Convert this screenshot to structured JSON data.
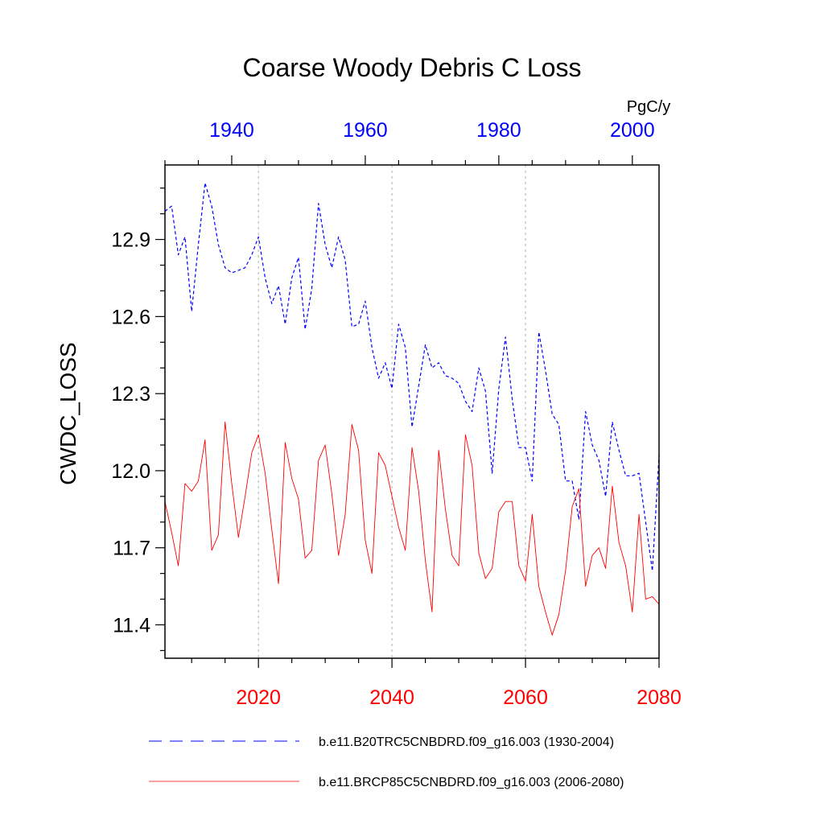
{
  "chart_data": {
    "type": "line",
    "title": "Coarse Woody Debris C Loss",
    "ylabel": "CWDC_LOSS",
    "units": "PgC/y",
    "ylim": [
      11.27,
      13.19
    ],
    "yticks": [
      11.4,
      11.7,
      12.0,
      12.3,
      12.6,
      12.9
    ],
    "ytick_labels": [
      "11.4",
      "11.7",
      "12.0",
      "12.3",
      "12.6",
      "12.9"
    ],
    "top_axis": {
      "range": [
        1930,
        2004
      ],
      "ticks": [
        1940,
        1960,
        1980,
        2000
      ],
      "tick_labels": [
        "1940",
        "1960",
        "1980",
        "2000"
      ],
      "color": "#0000ff"
    },
    "bottom_axis": {
      "range": [
        2006,
        2080
      ],
      "ticks": [
        2020,
        2040,
        2060,
        2080
      ],
      "tick_labels": [
        "2020",
        "2040",
        "2060",
        "2080"
      ],
      "color": "#ff0000"
    },
    "series": [
      {
        "name": "b.e11.B20TRC5CNBDRD.f09_g16.003 (1930-2004)",
        "axis": "top",
        "color": "#0000ff",
        "dash": "dashed",
        "x_start": 1930,
        "values": [
          13.01,
          13.03,
          12.84,
          12.91,
          12.62,
          12.88,
          13.12,
          13.03,
          12.88,
          12.79,
          12.77,
          12.78,
          12.79,
          12.84,
          12.91,
          12.75,
          12.65,
          12.72,
          12.57,
          12.75,
          12.83,
          12.55,
          12.71,
          13.04,
          12.88,
          12.79,
          12.91,
          12.82,
          12.56,
          12.57,
          12.66,
          12.48,
          12.36,
          12.42,
          12.32,
          12.57,
          12.48,
          12.17,
          12.33,
          12.49,
          12.4,
          12.42,
          12.37,
          12.36,
          12.34,
          12.27,
          12.23,
          12.4,
          12.31,
          11.99,
          12.32,
          12.52,
          12.28,
          12.09,
          12.09,
          11.96,
          12.54,
          12.39,
          12.22,
          12.18,
          11.96,
          11.96,
          11.81,
          12.23,
          12.1,
          12.04,
          11.9,
          12.19,
          12.08,
          11.98,
          11.98,
          11.99,
          11.8,
          11.61,
          12.06
        ]
      },
      {
        "name": "b.e11.BRCP85C5CNBDRD.f09_g16.003 (2006-2080)",
        "axis": "bottom",
        "color": "#ff0000",
        "dash": "solid",
        "x_start": 2006,
        "values": [
          11.88,
          11.76,
          11.63,
          11.95,
          11.92,
          11.96,
          12.12,
          11.69,
          11.75,
          12.19,
          11.95,
          11.74,
          11.9,
          12.07,
          12.14,
          11.99,
          11.77,
          11.56,
          12.11,
          11.97,
          11.89,
          11.66,
          11.69,
          12.04,
          12.1,
          11.91,
          11.67,
          11.83,
          12.18,
          12.08,
          11.73,
          11.6,
          12.07,
          12.02,
          11.9,
          11.78,
          11.69,
          12.09,
          11.92,
          11.65,
          11.45,
          12.08,
          11.85,
          11.67,
          11.63,
          12.14,
          12.02,
          11.68,
          11.58,
          11.62,
          11.84,
          11.88,
          11.88,
          11.63,
          11.57,
          11.83,
          11.55,
          11.45,
          11.36,
          11.44,
          11.61,
          11.86,
          11.93,
          11.55,
          11.67,
          11.7,
          11.62,
          11.94,
          11.72,
          11.63,
          11.45,
          11.83,
          11.5,
          11.51,
          11.48
        ]
      }
    ],
    "legend": {
      "placement": "bottom",
      "entries": [
        "b.e11.B20TRC5CNBDRD.f09_g16.003 (1930-2004)",
        "b.e11.BRCP85C5CNBDRD.f09_g16.003 (2006-2080)"
      ]
    }
  }
}
